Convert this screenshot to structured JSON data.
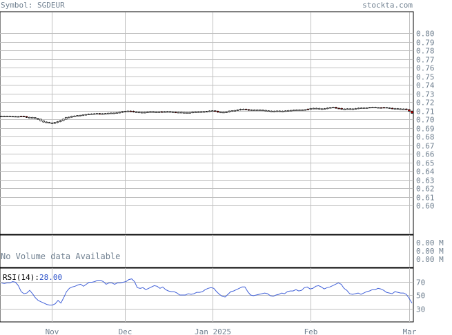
{
  "header": {
    "symbol_label": "Symbol: SGDEUR",
    "site_label": "stockta.com"
  },
  "volume_panel": {
    "message": "No Volume data Available",
    "tick_labels": [
      "0.00 M",
      "0.00 M",
      "0.00 M"
    ]
  },
  "rsi_panel": {
    "label_prefix": "RSI(14):",
    "value": "28.00",
    "tick_labels": [
      "70",
      "50",
      "30"
    ]
  },
  "colors": {
    "text": "#708090",
    "grid": "#bfbfbf",
    "border": "#000000",
    "up_candle": "#ffffff",
    "down_candle": "#cc0000",
    "rsi_line": "#3f5fd8",
    "rsi_value": "#2a50c8"
  },
  "chart_data": [
    {
      "type": "candlestick",
      "title": "",
      "y_ticks": [
        "0.80",
        "0.79",
        "0.78",
        "0.77",
        "0.76",
        "0.75",
        "0.74",
        "0.73",
        "0.72",
        "0.71",
        "0.70",
        "0.69",
        "0.68",
        "0.67",
        "0.66",
        "0.65",
        "0.64",
        "0.63",
        "0.62",
        "0.61",
        "0.60"
      ],
      "ylim": [
        0.595,
        0.815
      ],
      "x_month_labels": [
        {
          "label": "Nov",
          "index": 18
        },
        {
          "label": "Dec",
          "index": 44
        },
        {
          "label": "Jan 2025",
          "index": 75
        },
        {
          "label": "Feb",
          "index": 110
        },
        {
          "label": "Mar",
          "index": 145
        }
      ],
      "close": [
        0.7035,
        0.7035,
        0.7035,
        0.7034,
        0.7033,
        0.7032,
        0.703,
        0.7035,
        0.7032,
        0.7022,
        0.7021,
        0.7018,
        0.701,
        0.7,
        0.6982,
        0.6968,
        0.6963,
        0.6958,
        0.6952,
        0.6962,
        0.6972,
        0.6985,
        0.7001,
        0.702,
        0.7024,
        0.7035,
        0.7038,
        0.7042,
        0.7045,
        0.705,
        0.7055,
        0.706,
        0.7062,
        0.7064,
        0.7066,
        0.706,
        0.7064,
        0.7066,
        0.707,
        0.7072,
        0.707,
        0.7075,
        0.708,
        0.7088,
        0.7091,
        0.7095,
        0.7093,
        0.7085,
        0.7082,
        0.708,
        0.7076,
        0.708,
        0.7084,
        0.7087,
        0.7082,
        0.7084,
        0.7085,
        0.7087,
        0.7086,
        0.7088,
        0.7085,
        0.7082,
        0.7078,
        0.708,
        0.7078,
        0.7076,
        0.7074,
        0.7077,
        0.7082,
        0.7085,
        0.7086,
        0.7087,
        0.7088,
        0.709,
        0.7096,
        0.7098,
        0.7093,
        0.7082,
        0.7081,
        0.7079,
        0.7085,
        0.7095,
        0.7098,
        0.7102,
        0.7108,
        0.7116,
        0.7117,
        0.7112,
        0.7104,
        0.7108,
        0.7107,
        0.7108,
        0.7106,
        0.7103,
        0.7098,
        0.7095,
        0.7091,
        0.7094,
        0.7096,
        0.7093,
        0.7094,
        0.7097,
        0.7101,
        0.7103,
        0.7106,
        0.7108,
        0.7109,
        0.7107,
        0.7111,
        0.7118,
        0.7124,
        0.7127,
        0.7126,
        0.712,
        0.7121,
        0.7123,
        0.713,
        0.7136,
        0.7139,
        0.7128,
        0.7126,
        0.7117,
        0.7119,
        0.7121,
        0.7117,
        0.712,
        0.7124,
        0.7129,
        0.7131,
        0.7132,
        0.7133,
        0.7138,
        0.7139,
        0.7136,
        0.7135,
        0.7134,
        0.7137,
        0.7133,
        0.7128,
        0.7124,
        0.7123,
        0.712,
        0.7117,
        0.7119,
        0.7112,
        0.7094,
        0.707
      ],
      "down_days": [
        7,
        8,
        9,
        35,
        46,
        47,
        57,
        62,
        76,
        77,
        87,
        88,
        109,
        119,
        120,
        121,
        135,
        136,
        139,
        144,
        145,
        146
      ]
    },
    {
      "type": "line",
      "title": "RSI(14)",
      "ylim": [
        10,
        90
      ],
      "y_ticks": [
        70,
        50,
        30
      ],
      "values": [
        68,
        67,
        68,
        68,
        70,
        69,
        64,
        55,
        52,
        53,
        57,
        52,
        46,
        42,
        40,
        38,
        36,
        35,
        35,
        37,
        42,
        38,
        46,
        55,
        60,
        62,
        63,
        65,
        66,
        63,
        66,
        69,
        69,
        70,
        72,
        72,
        70,
        66,
        68,
        68,
        66,
        68,
        68,
        69,
        70,
        73,
        74,
        70,
        61,
        60,
        61,
        58,
        60,
        62,
        64,
        63,
        60,
        62,
        58,
        56,
        55,
        55,
        53,
        50,
        50,
        50,
        52,
        51,
        52,
        54,
        54,
        55,
        58,
        60,
        61,
        60,
        55,
        51,
        48,
        47,
        51,
        55,
        56,
        58,
        60,
        62,
        62,
        55,
        50,
        49,
        50,
        51,
        52,
        53,
        52,
        49,
        48,
        50,
        51,
        53,
        52,
        55,
        56,
        56,
        58,
        56,
        57,
        61,
        62,
        59,
        60,
        63,
        64,
        62,
        59,
        61,
        62,
        64,
        66,
        68,
        66,
        60,
        57,
        52,
        51,
        52,
        53,
        51,
        53,
        55,
        56,
        58,
        58,
        60,
        59,
        57,
        54,
        53,
        52,
        55,
        54,
        53,
        53,
        51,
        45,
        38
      ]
    }
  ]
}
